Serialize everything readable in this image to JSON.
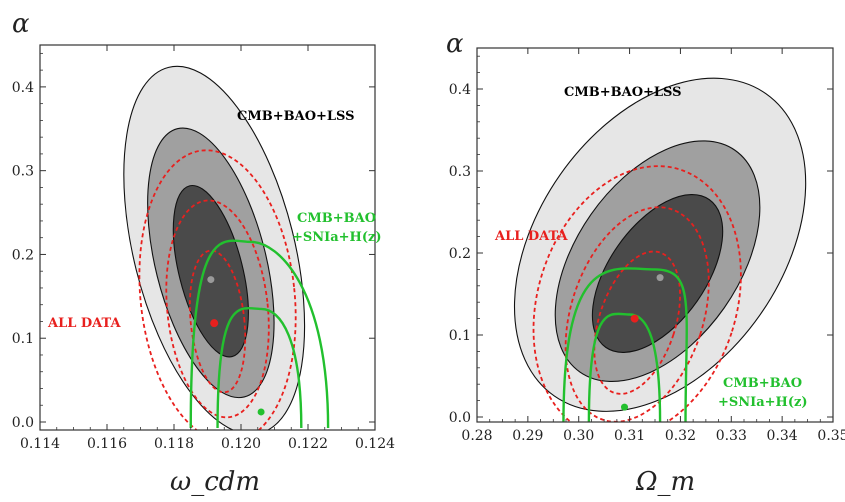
{
  "figure": "two-panel contour plot",
  "chart_data": [
    {
      "type": "contour",
      "ylabel": "α",
      "xlabel": "ω_cdm",
      "xlim": [
        0.114,
        0.124
      ],
      "ylim": [
        0.0,
        0.45
      ],
      "xticks": [
        0.114,
        0.116,
        0.118,
        0.12,
        0.122,
        0.124
      ],
      "xtick_labels": [
        "0.114",
        "0.116",
        "0.118",
        "0.120",
        "0.122",
        "0.124"
      ],
      "yticks": [
        0.0,
        0.1,
        0.2,
        0.3,
        0.4
      ],
      "ytick_labels": [
        "0.0",
        "0.1",
        "0.2",
        "0.3",
        "0.4"
      ],
      "series": [
        {
          "name": "CMB+BAO+LSS",
          "style": "filled gray ellipses (1σ dark, 2σ mid, 3σ light)",
          "color": "#888888",
          "best_fit": [
            0.1191,
            0.17
          ],
          "contours": [
            {
              "level": "1σ",
              "center": [
                0.1191,
                0.18
              ],
              "half_width_x": 0.00095,
              "half_height_y": 0.105,
              "tilt_deg": -14
            },
            {
              "level": "2σ",
              "center": [
                0.1191,
                0.19
              ],
              "half_width_x": 0.00165,
              "half_height_y": 0.165,
              "tilt_deg": -14
            },
            {
              "level": "3σ",
              "center": [
                0.1192,
                0.205
              ],
              "half_width_x": 0.0024,
              "half_height_y": 0.225,
              "tilt_deg": -14
            }
          ]
        },
        {
          "name": "ALL DATA",
          "style": "red dashed ellipses",
          "color": "#e8201e",
          "best_fit": [
            0.1192,
            0.118
          ],
          "contours": [
            {
              "level": "1σ",
              "center": [
                0.1193,
                0.12
              ],
              "half_width_x": 0.0008,
              "half_height_y": 0.085
            },
            {
              "level": "2σ",
              "center": [
                0.1193,
                0.135
              ],
              "half_width_x": 0.0015,
              "half_height_y": 0.13
            },
            {
              "level": "3σ",
              "center": [
                0.1193,
                0.15
              ],
              "half_width_x": 0.0023,
              "half_height_y": 0.175
            }
          ]
        },
        {
          "name": "CMB+BAO\n+SNIa+H(z)",
          "style": "green solid open arcs",
          "color": "#22c02e",
          "best_fit": [
            0.1206,
            0.012
          ],
          "contours": [
            {
              "level": "1σ",
              "x_left": 0.1193,
              "x_right": 0.1218,
              "peak": [
                0.1206,
                0.135
              ]
            },
            {
              "level": "2σ",
              "x_left": 0.1185,
              "x_right": 0.1226,
              "peak": [
                0.1203,
                0.215
              ]
            }
          ]
        }
      ]
    },
    {
      "type": "contour",
      "ylabel": "α",
      "xlabel": "Ω_m",
      "xlim": [
        0.28,
        0.35
      ],
      "ylim": [
        0.0,
        0.45
      ],
      "xticks": [
        0.28,
        0.29,
        0.3,
        0.31,
        0.32,
        0.33,
        0.34,
        0.35
      ],
      "xtick_labels": [
        "0.28",
        "0.29",
        "0.30",
        "0.31",
        "0.32",
        "0.33",
        "0.34",
        "0.35"
      ],
      "yticks": [
        0.0,
        0.1,
        0.2,
        0.3,
        0.4
      ],
      "ytick_labels": [
        "0.0",
        "0.1",
        "0.2",
        "0.3",
        "0.4"
      ],
      "series": [
        {
          "name": "CMB+BAO+LSS",
          "style": "filled gray ellipses (1σ dark, 2σ mid, 3σ light)",
          "color": "#888888",
          "best_fit": [
            0.316,
            0.17
          ],
          "contours": [
            {
              "level": "1σ",
              "center": [
                0.3155,
                0.175
              ],
              "half_width_x": 0.0095,
              "half_height_y": 0.11,
              "tilt_deg": 35
            },
            {
              "level": "2σ",
              "center": [
                0.3155,
                0.19
              ],
              "half_width_x": 0.016,
              "half_height_y": 0.165,
              "tilt_deg": 35
            },
            {
              "level": "3σ",
              "center": [
                0.316,
                0.21
              ],
              "half_width_x": 0.024,
              "half_height_y": 0.225,
              "tilt_deg": 35
            }
          ]
        },
        {
          "name": "ALL DATA",
          "style": "red dashed ellipses",
          "color": "#e8201e",
          "best_fit": [
            0.311,
            0.12
          ],
          "contours": [
            {
              "level": "1σ",
              "center": [
                0.3115,
                0.115
              ],
              "half_width_x": 0.0075,
              "half_height_y": 0.09
            },
            {
              "level": "2σ",
              "center": [
                0.3115,
                0.125
              ],
              "half_width_x": 0.013,
              "half_height_y": 0.135
            },
            {
              "level": "3σ",
              "center": [
                0.3115,
                0.14
              ],
              "half_width_x": 0.0195,
              "half_height_y": 0.17
            }
          ]
        },
        {
          "name": "CMB+BAO\n+SNIa+H(z)",
          "style": "green solid open arcs",
          "color": "#22c02e",
          "best_fit": [
            0.309,
            0.012
          ],
          "contours": [
            {
              "level": "1σ",
              "x_left": 0.302,
              "x_right": 0.316,
              "peak": [
                0.31,
                0.125
              ]
            },
            {
              "level": "2σ",
              "x_left": 0.297,
              "x_right": 0.321,
              "peak": [
                0.315,
                0.18
              ]
            }
          ]
        }
      ]
    }
  ]
}
